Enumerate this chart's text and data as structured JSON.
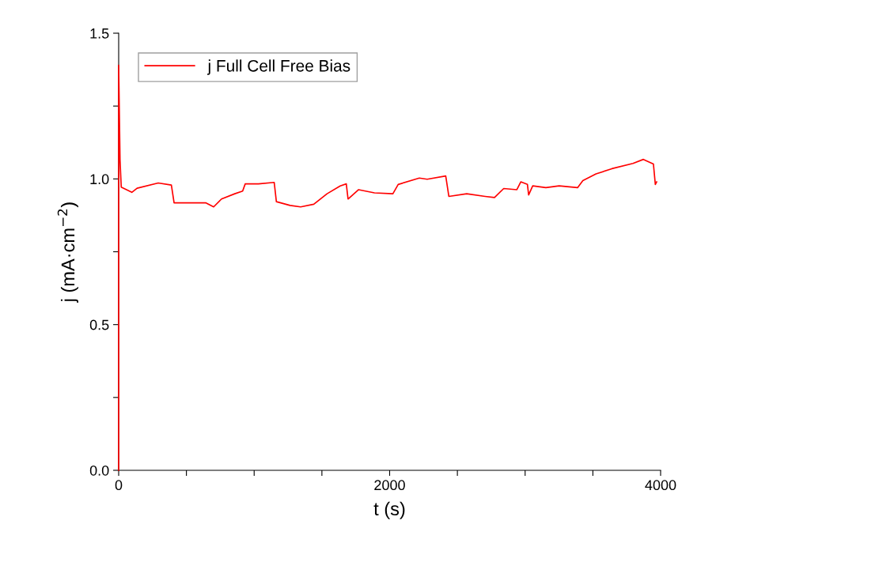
{
  "chart_data": {
    "type": "line",
    "xlabel": "t (s)",
    "ylabel": "j (mA·cm$^{−2}$)",
    "xlim": [
      0,
      4000
    ],
    "xticks": [
      0,
      {
        "value": 500,
        "label": null
      },
      {
        "value": 1000,
        "label": null
      },
      {
        "value": 1500,
        "label": null
      },
      2000,
      {
        "value": 2500,
        "label": null
      },
      {
        "value": 3000,
        "label": null
      },
      {
        "value": 3500,
        "label": null
      },
      4000
    ],
    "ylim": [
      0,
      1.5
    ],
    "yticks": [
      "0.0",
      {
        "value": 0.25,
        "label": null
      },
      {
        "value": 0.5,
        "label": "0.5"
      },
      {
        "value": 0.75,
        "label": null
      },
      {
        "value": 1.0,
        "label": "1.0"
      },
      {
        "value": 1.25,
        "label": null
      },
      {
        "value": 1.5,
        "label": "1.5"
      }
    ],
    "grid": false,
    "legend": "top left",
    "marker": "none",
    "line_style": "solid",
    "series": [
      {
        "name": "j Full Cell Free Bias",
        "color": "#ff0000",
        "x": [
          0,
          0,
          10,
          19,
          97,
          136,
          292,
          389,
          409,
          526,
          642,
          701,
          759,
          857,
          915,
          934,
          1032,
          1148,
          1164,
          1265,
          1343,
          1440,
          1538,
          1635,
          1680,
          1693,
          1771,
          1888,
          2024,
          2063,
          2219,
          2277,
          2414,
          2437,
          2569,
          2705,
          2774,
          2842,
          2939,
          2968,
          3017,
          3026,
          3056,
          3153,
          3251,
          3387,
          3426,
          3523,
          3640,
          3796,
          3873,
          3947,
          3961,
          3971
        ],
        "values": [
          0,
          1.39,
          1.065,
          0.972,
          0.954,
          0.968,
          0.986,
          0.979,
          0.918,
          0.918,
          0.918,
          0.904,
          0.931,
          0.949,
          0.958,
          0.983,
          0.983,
          0.988,
          0.922,
          0.909,
          0.904,
          0.913,
          0.949,
          0.976,
          0.983,
          0.931,
          0.963,
          0.952,
          0.949,
          0.981,
          1.003,
          0.999,
          1.01,
          0.94,
          0.949,
          0.94,
          0.936,
          0.967,
          0.963,
          0.99,
          0.981,
          0.945,
          0.976,
          0.97,
          0.976,
          0.97,
          0.994,
          1.017,
          1.035,
          1.053,
          1.067,
          1.051,
          0.981,
          0.99
        ]
      }
    ]
  }
}
